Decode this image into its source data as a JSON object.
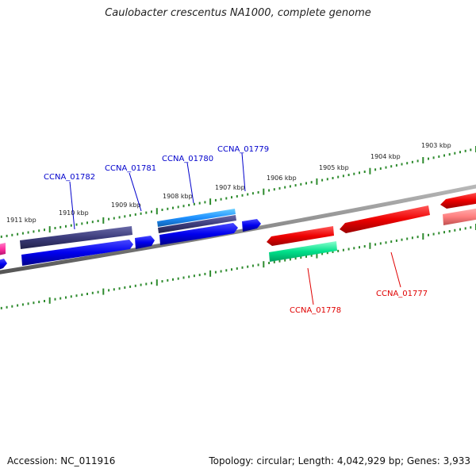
{
  "title": "Caulobacter crescentus NA1000, complete genome",
  "footer": {
    "accession": "Accession: NC_011916",
    "summary": "Topology: circular; Length: 4,042,929 bp; Genes: 3,933"
  },
  "colors": {
    "backbone": "#888888",
    "tick": "#2e8b2e",
    "forward_gene": "#0000ee",
    "forward_gene_dark": "#3c3c7c",
    "forward_gene_light": "#1e90ff",
    "reverse_gene": "#ee0000",
    "reverse_gene_light": "#ff7f7f",
    "reverse_label": "#e00000",
    "forward_label": "#0000cc",
    "rna_green": "#00e08a",
    "pink_gene": "#ff2f9f"
  },
  "scale": {
    "unit": "kbp",
    "labels": [
      "1911 kbp",
      "1910 kbp",
      "1909 kbp",
      "1908 kbp",
      "1907 kbp",
      "1906 kbp",
      "1905 kbp",
      "1904 kbp",
      "1903 kbp"
    ]
  },
  "gene_labels": {
    "forward": [
      "CCNA_01782",
      "CCNA_01781",
      "CCNA_01780",
      "CCNA_01779"
    ],
    "reverse": [
      "CCNA_01778",
      "CCNA_01777"
    ]
  }
}
